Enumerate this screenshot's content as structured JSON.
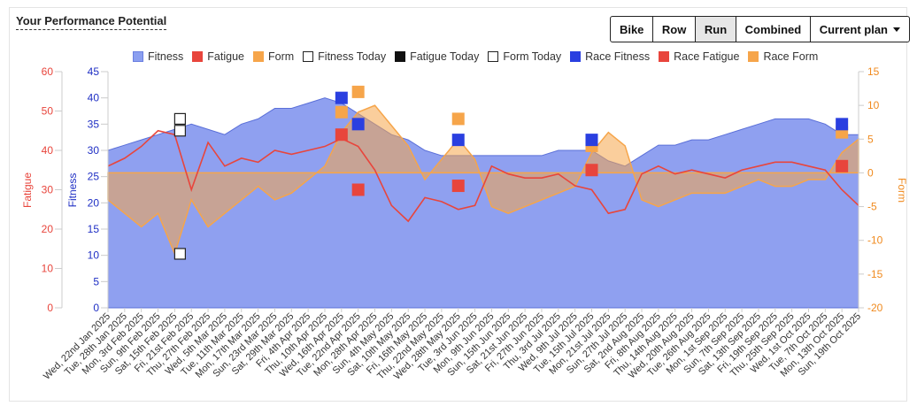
{
  "title": "Your Performance Potential",
  "buttons": {
    "bike": "Bike",
    "row": "Row",
    "run": "Run",
    "combined": "Combined",
    "plan": "Current plan"
  },
  "legend": [
    {
      "label": "Fitness",
      "color": "#8b9ff0",
      "border": "#6a7fe0",
      "style": "fill"
    },
    {
      "label": "Fatigue",
      "color": "#e8453c",
      "border": "#e8453c",
      "style": "fill"
    },
    {
      "label": "Form",
      "color": "#f6a54a",
      "border": "#f6a54a",
      "style": "fill"
    },
    {
      "label": "Fitness Today",
      "color": "#ffffff",
      "border": "#222222",
      "style": "outline"
    },
    {
      "label": "Fatigue Today",
      "color": "#111111",
      "border": "#111111",
      "style": "fill"
    },
    {
      "label": "Form Today",
      "color": "#ffffff",
      "border": "#222222",
      "style": "outline"
    },
    {
      "label": "Race Fitness",
      "color": "#2a3fe0",
      "border": "#2a3fe0",
      "style": "fill"
    },
    {
      "label": "Race Fatigue",
      "color": "#e8453c",
      "border": "#e8453c",
      "style": "fill"
    },
    {
      "label": "Race Form",
      "color": "#f6a54a",
      "border": "#f6a54a",
      "style": "fill"
    }
  ],
  "chart_data": {
    "type": "area",
    "xlabels": [
      "Wed, 22nd Jan 2025",
      "Tue, 28th Jan 2025",
      "Mon, 3rd Feb 2025",
      "Sun, 9th Feb 2025",
      "Sat, 15th Feb 2025",
      "Fri, 21st Feb 2025",
      "Thu, 27th Feb 2025",
      "Wed, 5th Mar 2025",
      "Tue, 11th Mar 2025",
      "Mon, 17th Mar 2025",
      "Sun, 23rd Mar 2025",
      "Sat, 29th Mar 2025",
      "Fri, 4th Apr 2025",
      "Thu, 10th Apr 2025",
      "Wed, 16th Apr 2025",
      "Tue, 22nd Apr 2025",
      "Mon, 28th Apr 2025",
      "Sun, 4th May 2025",
      "Sat, 10th May 2025",
      "Fri, 16th May 2025",
      "Thu, 22nd May 2025",
      "Wed, 28th May 2025",
      "Tue, 3rd Jun 2025",
      "Mon, 9th Jun 2025",
      "Sun, 15th Jun 2025",
      "Sat, 21st Jun 2025",
      "Fri, 27th Jun 2025",
      "Thu, 3rd Jul 2025",
      "Wed, 9th Jul 2025",
      "Tue, 15th Jul 2025",
      "Mon, 21st Jul 2025",
      "Sun, 27th Jul 2025",
      "Sat, 2nd Aug 2025",
      "Fri, 8th Aug 2025",
      "Thu, 14th Aug 2025",
      "Wed, 20th Aug 2025",
      "Tue, 26th Aug 2025",
      "Mon, 1st Sep 2025",
      "Sun, 7th Sep 2025",
      "Sat, 13th Sep 2025",
      "Fri, 19th Sep 2025",
      "Thu, 25th Sep 2025",
      "Wed, 1st Oct 2025",
      "Tue, 7th Oct 2025",
      "Mon, 13th Oct 2025",
      "Sun, 19th Oct 2025"
    ],
    "axes": {
      "fatigue": {
        "label": "Fatigue",
        "min": 0,
        "max": 60,
        "ticks": [
          0,
          10,
          20,
          30,
          40,
          50,
          60
        ],
        "color": "#e8453c"
      },
      "fitness": {
        "label": "Fitness",
        "min": 0,
        "max": 45,
        "ticks": [
          0,
          5,
          10,
          15,
          20,
          25,
          30,
          35,
          40,
          45
        ],
        "color": "#1f2fc4"
      },
      "form": {
        "label": "Form",
        "min": -20,
        "max": 15,
        "ticks": [
          -20,
          -15,
          -10,
          -5,
          0,
          5,
          10,
          15
        ],
        "color": "#f08a1e"
      }
    },
    "series": [
      {
        "name": "Fitness",
        "axis": "fitness",
        "values": [
          30,
          31,
          32,
          33,
          34,
          35,
          34,
          33,
          35,
          36,
          38,
          38,
          39,
          40,
          39,
          37,
          35,
          33,
          32,
          30,
          29,
          29,
          29,
          29,
          29,
          29,
          29,
          30,
          30,
          30,
          28,
          27,
          29,
          31,
          31,
          32,
          32,
          33,
          34,
          35,
          36,
          36,
          36,
          35,
          33,
          33
        ]
      },
      {
        "name": "Fatigue",
        "axis": "fatigue",
        "values": [
          36,
          38,
          41,
          45,
          44,
          30,
          42,
          36,
          38,
          37,
          40,
          39,
          40,
          41,
          43,
          41,
          35,
          26,
          22,
          28,
          27,
          25,
          26,
          36,
          34,
          33,
          33,
          34,
          31,
          30,
          24,
          25,
          34,
          36,
          34,
          35,
          34,
          33,
          35,
          36,
          37,
          37,
          36,
          35,
          30,
          26
        ]
      },
      {
        "name": "Form",
        "axis": "form",
        "values": [
          -4,
          -6,
          -8,
          -6,
          -12,
          -4,
          -8,
          -6,
          -4,
          -2,
          -4,
          -3,
          -1,
          1,
          6,
          9,
          10,
          7,
          4,
          -1,
          2,
          5,
          2,
          -5,
          -6,
          -5,
          -4,
          -3,
          -2,
          3,
          6,
          4,
          -4,
          -5,
          -4,
          -3,
          -3,
          -3,
          -2,
          -1,
          -2,
          -2,
          -1,
          -1,
          3,
          5
        ]
      }
    ],
    "race_markers": [
      {
        "x": "Wed, 16th Apr 2025",
        "fitness": 40,
        "fatigue": 44,
        "form": 9
      },
      {
        "x": "Tue, 22nd Apr 2025",
        "fitness": 35,
        "fatigue": 30,
        "form": 12
      },
      {
        "x": "Wed, 28th May 2025",
        "fitness": 32,
        "fatigue": 31,
        "form": 8
      },
      {
        "x": "Tue, 15th Jul 2025",
        "fitness": 32,
        "fatigue": 35,
        "form": 4
      },
      {
        "x": "Mon, 13th Oct 2025",
        "fitness": 35,
        "fatigue": 36,
        "form": 6
      }
    ],
    "today_markers": {
      "x": "Sat, 15th Feb 2025",
      "fitness": 36,
      "fatigue": 45,
      "form": -12
    }
  }
}
